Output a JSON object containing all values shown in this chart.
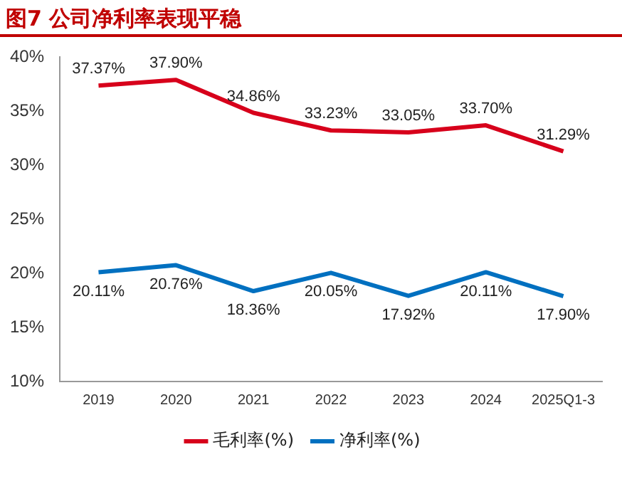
{
  "chart_data": {
    "type": "line",
    "title": "图7  公司净利率表现平稳",
    "categories": [
      "2019",
      "2020",
      "2021",
      "2022",
      "2023",
      "2024",
      "2025Q1-3"
    ],
    "series": [
      {
        "name": "毛利率(%)",
        "color": "#d7001b",
        "values": [
          37.37,
          37.9,
          34.86,
          33.23,
          33.05,
          33.7,
          31.29
        ],
        "value_labels": [
          "37.37%",
          "37.90%",
          "34.86%",
          "33.23%",
          "33.05%",
          "33.70%",
          "31.29%"
        ]
      },
      {
        "name": "净利率(%)",
        "color": "#0070c0",
        "values": [
          20.11,
          20.76,
          18.36,
          20.05,
          17.92,
          20.11,
          17.9
        ],
        "value_labels": [
          "20.11%",
          "20.76%",
          "18.36%",
          "20.05%",
          "17.92%",
          "20.11%",
          "17.90%"
        ]
      }
    ],
    "ylim": [
      10,
      40
    ],
    "yticks": [
      {
        "value": 10,
        "label": "10%"
      },
      {
        "value": 15,
        "label": "15%"
      },
      {
        "value": 20,
        "label": "20%"
      },
      {
        "value": 25,
        "label": "25%"
      },
      {
        "value": 30,
        "label": "30%"
      },
      {
        "value": 35,
        "label": "35%"
      },
      {
        "value": 40,
        "label": "40%"
      }
    ],
    "grid": false,
    "legend": "bottom",
    "marker": "none",
    "line_style": "solid"
  }
}
